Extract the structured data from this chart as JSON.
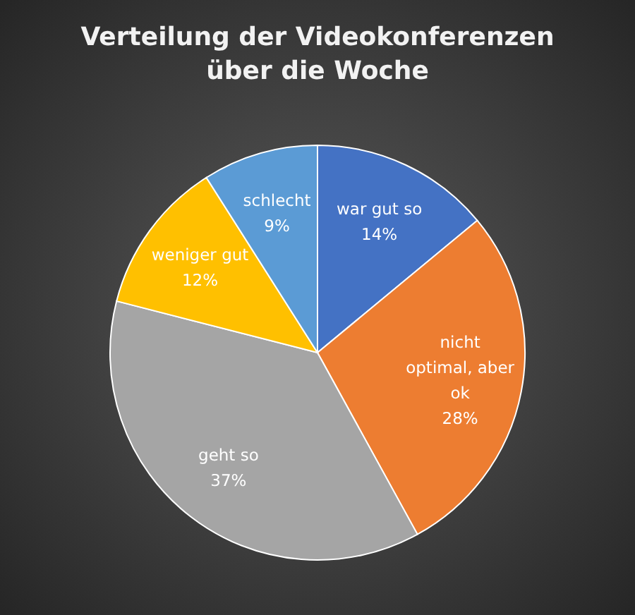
{
  "chart_data": {
    "type": "pie",
    "title": "Verteilung der Videokonferenzen über die Woche",
    "categories": [
      "war gut so",
      "nicht optimal, aber ok",
      "geht so",
      "weniger gut",
      "schlecht"
    ],
    "values": [
      14,
      28,
      37,
      12,
      9
    ],
    "value_labels": [
      "14%",
      "28%",
      "37%",
      "12%",
      "9%"
    ],
    "colors": [
      "#4472c4",
      "#ed7d31",
      "#a5a5a5",
      "#ffc000",
      "#5b9bd5"
    ]
  }
}
